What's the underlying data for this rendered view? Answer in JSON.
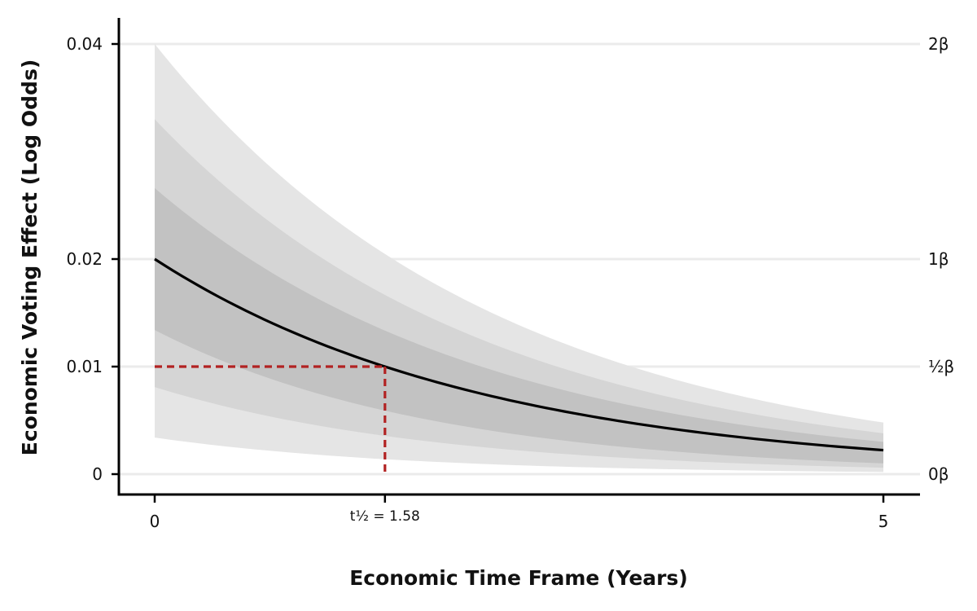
{
  "chart_data": {
    "type": "line",
    "xlabel": "Economic Time Frame (Years)",
    "ylabel": "Economic Voting Effect (Log Odds)",
    "xlim": [
      0,
      5
    ],
    "ylim": [
      0,
      0.04
    ],
    "x_ticks": [
      {
        "value": 0,
        "label": "0"
      },
      {
        "value": 1.58,
        "label": "t½ = 1.58"
      },
      {
        "value": 5,
        "label": "5"
      }
    ],
    "y_ticks": [
      {
        "value": 0,
        "label": "0"
      },
      {
        "value": 0.01,
        "label": "0.01"
      },
      {
        "value": 0.02,
        "label": "0.02"
      },
      {
        "value": 0.04,
        "label": "0.04"
      }
    ],
    "right_axis_ticks": [
      {
        "value": 0,
        "label": "0β"
      },
      {
        "value": 0.01,
        "label": "½β"
      },
      {
        "value": 0.02,
        "label": "1β"
      },
      {
        "value": 0.04,
        "label": "2β"
      }
    ],
    "grid": "horizontal",
    "decay": {
      "beta": 0.02,
      "half_life": 1.58
    },
    "bands": [
      {
        "lower_start": 0.0034,
        "lower_end": 0.0002,
        "upper_start": 0.04,
        "upper_end": 0.0048,
        "color": "#e5e5e5"
      },
      {
        "lower_start": 0.0081,
        "lower_end": 0.0006,
        "upper_start": 0.033,
        "upper_end": 0.0038,
        "color": "#d5d5d5"
      },
      {
        "lower_start": 0.0134,
        "lower_end": 0.001,
        "upper_start": 0.0266,
        "upper_end": 0.003,
        "color": "#c2c2c2"
      }
    ],
    "half_life_marker": {
      "x": 1.58,
      "y": 0.01,
      "color": "#b22222"
    },
    "line_color": "#000000",
    "grid_color": "#ebebeb"
  }
}
